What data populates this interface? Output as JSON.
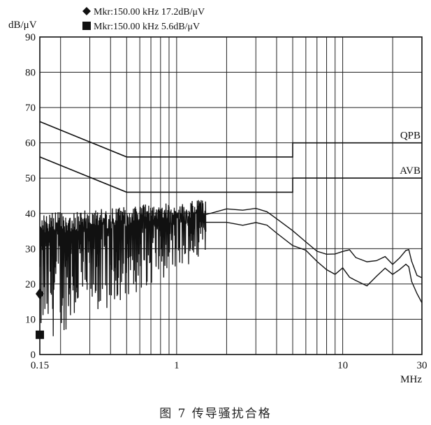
{
  "caption": "图 7   传导骚扰合格",
  "markers": [
    {
      "symbol": "diamond",
      "text": "Mkr:150.00  kHz   17.2dB/μV",
      "x": 0.15,
      "y": 17.2
    },
    {
      "symbol": "square",
      "text": "Mkr:150.00  kHz   5.6dB/μV",
      "x": 0.15,
      "y": 5.6
    }
  ],
  "chart_data": {
    "type": "line",
    "title": "",
    "xlabel": "MHz",
    "ylabel": "dB/μV",
    "xscale": "log",
    "xlim": [
      0.15,
      30
    ],
    "ylim": [
      0,
      90
    ],
    "grid": true,
    "x_tick_labels": [
      {
        "value": 0.15,
        "label": "0.15"
      },
      {
        "value": 1,
        "label": "1"
      },
      {
        "value": 10,
        "label": "10"
      },
      {
        "value": 30,
        "label": "30"
      }
    ],
    "y_ticks": [
      0,
      10,
      20,
      30,
      40,
      50,
      60,
      70,
      80,
      90
    ],
    "limit_lines": [
      {
        "name": "QPB",
        "points": [
          [
            0.15,
            66
          ],
          [
            0.5,
            56
          ],
          [
            5,
            56
          ],
          [
            5,
            60
          ],
          [
            30,
            60
          ]
        ]
      },
      {
        "name": "AVB",
        "points": [
          [
            0.15,
            56
          ],
          [
            0.5,
            46
          ],
          [
            5,
            46
          ],
          [
            5,
            50
          ],
          [
            30,
            50
          ]
        ]
      }
    ],
    "series": [
      {
        "color": "#111111",
        "points": [
          [
            1.5,
            40
          ],
          [
            2,
            41
          ],
          [
            2.5,
            41.5
          ],
          [
            3,
            42
          ],
          [
            3.5,
            41
          ],
          [
            4,
            39
          ],
          [
            5,
            35
          ],
          [
            6,
            32
          ],
          [
            7,
            29
          ],
          [
            8,
            28
          ],
          [
            9,
            28.5
          ],
          [
            10,
            29
          ],
          [
            11,
            30
          ],
          [
            12,
            28
          ],
          [
            14,
            26
          ],
          [
            16,
            27
          ],
          [
            18,
            28
          ],
          [
            20,
            26
          ],
          [
            22,
            27
          ],
          [
            24,
            29
          ],
          [
            25,
            30
          ],
          [
            26,
            27
          ],
          [
            28,
            23
          ],
          [
            30,
            22
          ]
        ]
      },
      {
        "color": "#111111",
        "points": [
          [
            1.5,
            37
          ],
          [
            2,
            37.5
          ],
          [
            2.5,
            37
          ],
          [
            3,
            37.5
          ],
          [
            3.5,
            36.5
          ],
          [
            4,
            34
          ],
          [
            5,
            31
          ],
          [
            6,
            29
          ],
          [
            7,
            26.5
          ],
          [
            8,
            24
          ],
          [
            9,
            23
          ],
          [
            10,
            25
          ],
          [
            11,
            22
          ],
          [
            12,
            21
          ],
          [
            14,
            20
          ],
          [
            16,
            22
          ],
          [
            18,
            24
          ],
          [
            20,
            23
          ],
          [
            22,
            24
          ],
          [
            24,
            25
          ],
          [
            25,
            25
          ],
          [
            26,
            21
          ],
          [
            28,
            17
          ],
          [
            30,
            15
          ]
        ]
      }
    ],
    "noise_band": {
      "x_range": [
        0.15,
        1.5
      ],
      "y_min": 3,
      "y_max": 45
    }
  }
}
